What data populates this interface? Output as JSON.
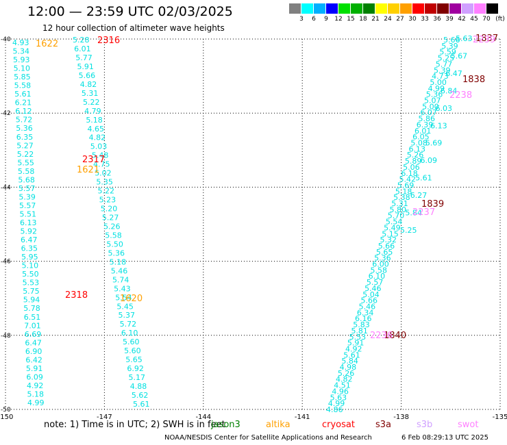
{
  "header": {
    "title": "12:00 — 23:59 UTC 02/03/2025",
    "subtitle": "12 hour collection of altimeter wave heights"
  },
  "colorbar": {
    "unit": "(ft)",
    "labels": [
      "3",
      "6",
      "9",
      "12",
      "15",
      "18",
      "21",
      "24",
      "27",
      "30",
      "33",
      "36",
      "39",
      "42",
      "45",
      "70"
    ],
    "colors": [
      "#808080",
      "#00ffff",
      "#00b0ff",
      "#0000ff",
      "#00e000",
      "#00b000",
      "#008000",
      "#ffff00",
      "#ffd000",
      "#ffa000",
      "#ff0000",
      "#c00000",
      "#800000",
      "#a000a0",
      "#d0a0ff",
      "#ff80ff",
      "#000000"
    ]
  },
  "map": {
    "lon_ticks": [
      -150,
      -147,
      -144,
      -141,
      -138,
      -135
    ],
    "lat_ticks": [
      -40,
      -42,
      -44,
      -46,
      -48,
      -50
    ],
    "lon_range": [
      -150,
      -135
    ],
    "lat_range": [
      -50,
      -40
    ],
    "dotted_grid": true
  },
  "tracks": {
    "color": "#00e0e0",
    "track_a": [
      "4.93",
      "5.34",
      "5.93",
      "5.10",
      "5.85",
      "5.58",
      "5.61",
      "6.21",
      "6.12",
      "5.72",
      "5.36",
      "6.35",
      "5.27",
      "5.22",
      "5.55",
      "5.58",
      "5.68",
      "5.57",
      "5.39",
      "5.57",
      "5.51",
      "6.13",
      "5.92",
      "6.47",
      "6.35",
      "5.95",
      "5.10",
      "5.50",
      "5.53",
      "5.75",
      "5.94",
      "5.78",
      "6.51",
      "7.01",
      "6.69",
      "6.47",
      "6.90",
      "6.42",
      "5.91",
      "6.09",
      "4.92",
      "5.18",
      "4.99"
    ],
    "track_b": [
      "5.28",
      "6.01",
      "5.77",
      "5.91",
      "5.66",
      "4.82",
      "5.31",
      "5.22",
      "4.79",
      "5.18",
      "4.65",
      "4.82",
      "5.03",
      "5.48",
      "4.75",
      "5.02",
      "5.35",
      "5.22",
      "5.23",
      "5.20",
      "5.27",
      "5.26",
      "5.58",
      "5.50",
      "5.36",
      "5.18",
      "5.46",
      "5.74",
      "5.43",
      "5.54",
      "5.45",
      "5.37",
      "5.72",
      "6.10",
      "5.60",
      "5.60",
      "5.65",
      "6.92",
      "5.17",
      "4.88",
      "5.62",
      "5.61"
    ],
    "track_c": [
      "5.66",
      "5.39",
      "5.59",
      "5.25",
      "5.77",
      "5.39",
      "4.73",
      "5.00",
      "4.99",
      "5.36",
      "5.07",
      "5.00",
      "6.07",
      "5.86",
      "6.39",
      "6.01",
      "6.05",
      "5.08",
      "6.13",
      "5.26",
      "5.89",
      "5.06",
      "6.18",
      "5.42",
      "5.69",
      "5.18",
      "5.38",
      "5.31",
      "5.80",
      "5.70",
      "5.54",
      "5.49",
      "5.15",
      "5.32",
      "5.66",
      "5.65",
      "5.36",
      "6.00",
      "5.58",
      "6.10",
      "5.57",
      "5.46",
      "5.04",
      "5.66",
      "5.46",
      "6.34",
      "6.16",
      "5.83",
      "5.81",
      "5.53",
      "5.91",
      "4.92",
      "5.61",
      "5.84",
      "4.98",
      "5.26",
      "4.82",
      "4.51",
      "4.96",
      "5.63",
      "4.99",
      "4.86"
    ],
    "track_d": [
      "5.63",
      "5.67",
      "6.47",
      "6.84",
      "6.03",
      "6.13",
      "5.69",
      "6.09",
      "5.61",
      "6.27",
      "5.84",
      "5.25"
    ]
  },
  "time_labels": [
    {
      "text": "1622",
      "color": "#ffa000"
    },
    {
      "text": "2316",
      "color": "#ff0000"
    },
    {
      "text": "2317",
      "color": "#ff0000"
    },
    {
      "text": "1621",
      "color": "#ffa000"
    },
    {
      "text": "2318",
      "color": "#ff0000"
    },
    {
      "text": "1620",
      "color": "#ffa000"
    },
    {
      "text": "1837",
      "color": "#800000"
    },
    {
      "text": "2239",
      "color": "#ff80ff"
    },
    {
      "text": "1838",
      "color": "#800000"
    },
    {
      "text": "2238",
      "color": "#ff80ff"
    },
    {
      "text": "1839",
      "color": "#800000"
    },
    {
      "text": "2237",
      "color": "#ff80ff"
    },
    {
      "text": "1840",
      "color": "#800000"
    },
    {
      "text": "2236",
      "color": "#ff80ff"
    }
  ],
  "footer": {
    "note": "note:  1) Time is in UTC;  2) SWH is in feet",
    "missions": [
      {
        "name": "jason3",
        "color": "#008000"
      },
      {
        "name": "altika",
        "color": "#ffa000"
      },
      {
        "name": "cryosat",
        "color": "#ff0000"
      },
      {
        "name": "s3a",
        "color": "#800000"
      },
      {
        "name": "s3b",
        "color": "#d0a0ff"
      },
      {
        "name": "swot",
        "color": "#ff80ff"
      }
    ],
    "credit": "NOAA/NESDIS Center for Satellite Applications and Research",
    "timestamp": "6 Feb 08:29:13 UTC 2025"
  }
}
